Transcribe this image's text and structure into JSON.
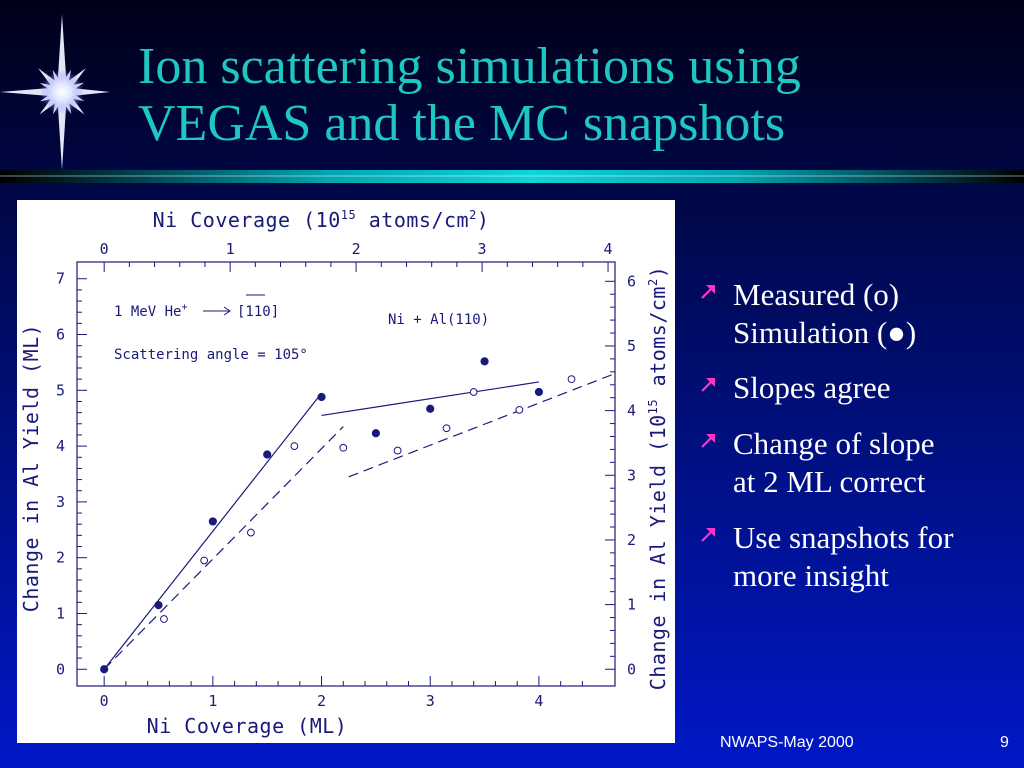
{
  "slide": {
    "title_line1": "Ion scattering simulations using",
    "title_line2": "VEGAS and the MC snapshots",
    "footer": "NWAPS-May 2000",
    "page_number": "9"
  },
  "bullets": [
    {
      "lines": [
        "Measured (o)",
        "Simulation (●)"
      ]
    },
    {
      "lines": [
        "Slopes agree"
      ]
    },
    {
      "lines": [
        "Change of slope",
        "at 2 ML correct"
      ]
    },
    {
      "lines": [
        "Use snapshots for",
        "more insight"
      ]
    }
  ],
  "colors": {
    "title": "#1fc7c2",
    "chart_ink": "#1a1a7a",
    "bullet_arrow": "#ff33cc"
  },
  "icons": {
    "logo": "star-burst-icon",
    "bullet": "arrow-up-right-icon"
  },
  "chart_data": {
    "type": "scatter",
    "axes": {
      "bottom": {
        "label": "Ni Coverage (ML)",
        "range": [
          -0.25,
          4.7
        ],
        "ticks": [
          0,
          1,
          2,
          3,
          4
        ]
      },
      "left": {
        "label": "Change in Al Yield (ML)",
        "range": [
          -0.3,
          7.3
        ],
        "ticks": [
          0,
          1,
          2,
          3,
          4,
          5,
          6,
          7
        ]
      },
      "top": {
        "label_main": "Ni Coverage (10",
        "label_sup": "15",
        "label_mid": " atoms/cm",
        "label_sup2": "2",
        "label_end": ")",
        "ticks": [
          "0",
          "1",
          "2",
          "3",
          "4"
        ],
        "ticks_at_ML": [
          0,
          1.159,
          2.318,
          3.477,
          4.636
        ]
      },
      "right": {
        "label_main": "Change in Al Yield (10",
        "label_sup": "15",
        "label_mid": " atoms/cm",
        "label_sup2": "2",
        "label_end": ")",
        "ticks": [
          "0",
          "1",
          "2",
          "3",
          "4",
          "5",
          "6"
        ],
        "ticks_at_ML": [
          0,
          1.159,
          2.318,
          3.477,
          4.636,
          5.795,
          6.954
        ]
      }
    },
    "annotations": {
      "beam_prefix": "1 MeV He",
      "beam_sup": "+",
      "beam_direction": "[110]",
      "angle": "Scattering angle = 105°",
      "system": "Ni + Al(110)"
    },
    "series": [
      {
        "name": "Simulation (●)",
        "marker": "filled",
        "points": [
          [
            0,
            0
          ],
          [
            0.5,
            1.15
          ],
          [
            1.0,
            2.65
          ],
          [
            1.5,
            3.85
          ],
          [
            2.0,
            4.88
          ],
          [
            2.5,
            4.23
          ],
          [
            3.0,
            4.67
          ],
          [
            3.5,
            5.52
          ],
          [
            4.0,
            4.97
          ]
        ]
      },
      {
        "name": "Measured (o)",
        "marker": "open",
        "points": [
          [
            0.55,
            0.9
          ],
          [
            0.92,
            1.95
          ],
          [
            1.35,
            2.45
          ],
          [
            1.75,
            4.0
          ],
          [
            2.2,
            3.97
          ],
          [
            2.7,
            3.92
          ],
          [
            3.15,
            4.32
          ],
          [
            3.4,
            4.97
          ],
          [
            3.82,
            4.65
          ],
          [
            4.3,
            5.2
          ]
        ]
      }
    ],
    "fit_lines": [
      {
        "style": "solid",
        "points": [
          [
            0,
            0
          ],
          [
            2.0,
            4.95
          ]
        ]
      },
      {
        "style": "solid",
        "points": [
          [
            2.0,
            4.55
          ],
          [
            4.0,
            5.15
          ]
        ]
      },
      {
        "style": "dashed",
        "points": [
          [
            0,
            0
          ],
          [
            2.2,
            4.35
          ]
        ]
      },
      {
        "style": "dashed",
        "points": [
          [
            2.25,
            3.45
          ],
          [
            4.7,
            5.3
          ]
        ]
      }
    ],
    "grid": false,
    "legend": "none"
  }
}
